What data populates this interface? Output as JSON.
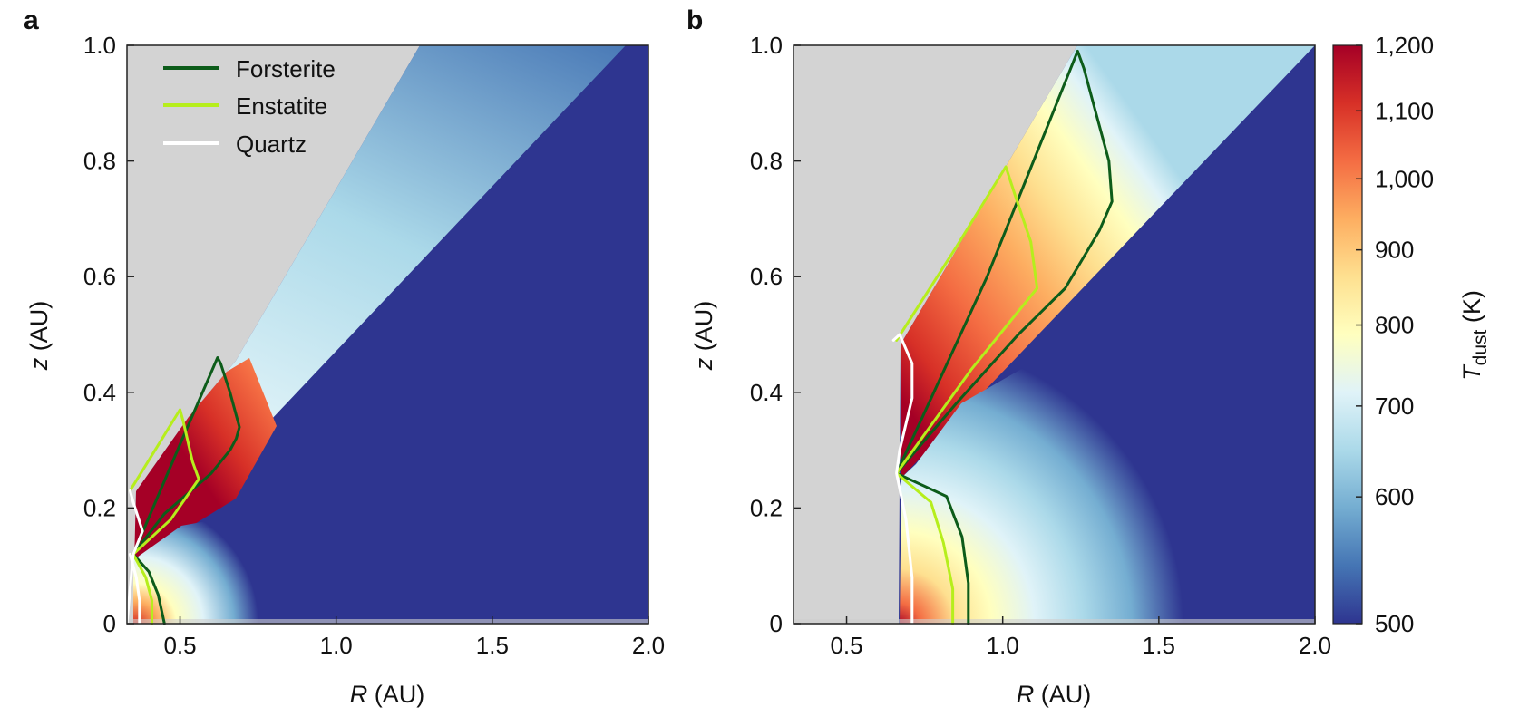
{
  "figure": {
    "panel_letters": [
      "a",
      "b"
    ]
  },
  "colors": {
    "forsterite": "#0d5c1a",
    "enstatite": "#b6ee1c",
    "quartz": "#ffffff",
    "cold_region": "#2e3590",
    "no_data": "#d3d3d3",
    "colormap": [
      "#2e3590",
      "#4575b4",
      "#74add1",
      "#abd9e9",
      "#e0f3f8",
      "#ffffbf",
      "#fee090",
      "#fdae61",
      "#f46d43",
      "#d73027",
      "#a50026"
    ]
  },
  "legend": {
    "items": [
      {
        "label": "Forsterite",
        "color": "#0d5c1a"
      },
      {
        "label": "Enstatite",
        "color": "#b6ee1c"
      },
      {
        "label": "Quartz",
        "color": "#ffffff"
      }
    ],
    "placement": "top-left (panel a)"
  },
  "colorbar": {
    "label_main": "T",
    "label_sub": "dust",
    "label_unit": " (K)",
    "ticks": [
      "1,200",
      "1,100",
      "1,000",
      "900",
      "800",
      "700",
      "600",
      "500"
    ],
    "tick_values": [
      1200,
      1100,
      1000,
      900,
      800,
      700,
      600,
      500
    ],
    "range": [
      500,
      1200
    ]
  },
  "chart_data": [
    {
      "type": "heatmap",
      "panel": "a",
      "xlabel_var": "R",
      "xlabel_unit": " (AU)",
      "ylabel_var": "z",
      "ylabel_unit": " (AU)",
      "xlim": [
        0.33,
        2.0
      ],
      "ylim": [
        0,
        1.0
      ],
      "xticks": [
        0.5,
        1.0,
        1.5,
        2.0
      ],
      "xtick_labels": [
        "0.5",
        "1.0",
        "1.5",
        "2.0"
      ],
      "yticks": [
        0,
        0.2,
        0.4,
        0.6,
        0.8,
        1.0
      ],
      "ytick_labels": [
        "0",
        "0.2",
        "0.4",
        "0.6",
        "0.8",
        "1.0"
      ],
      "grid": false,
      "series": [
        {
          "name": "Forsterite",
          "x": [
            0.35,
            0.4,
            0.43,
            0.45
          ],
          "y": [
            0.12,
            0.09,
            0.05,
            0.0
          ]
        },
        {
          "name": "Forsterite",
          "x": [
            0.35,
            0.5,
            0.62,
            0.63,
            0.66,
            0.69,
            0.68,
            0.67,
            0.66,
            0.6,
            0.45,
            0.35
          ],
          "y": [
            0.12,
            0.31,
            0.46,
            0.45,
            0.4,
            0.34,
            0.32,
            0.31,
            0.3,
            0.26,
            0.19,
            0.12
          ]
        },
        {
          "name": "Enstatite",
          "x": [
            0.35,
            0.39,
            0.41,
            0.41
          ],
          "y": [
            0.12,
            0.08,
            0.04,
            0.0
          ]
        },
        {
          "name": "Enstatite",
          "x": [
            0.34,
            0.42,
            0.5,
            0.51,
            0.54,
            0.56,
            0.47,
            0.35
          ],
          "y": [
            0.23,
            0.3,
            0.37,
            0.35,
            0.28,
            0.25,
            0.18,
            0.12
          ]
        },
        {
          "name": "Quartz",
          "x": [
            0.34,
            0.35,
            0.38,
            0.35,
            0.34,
            0.33
          ],
          "y": [
            0.23,
            0.21,
            0.16,
            0.12,
            0.06,
            0.0
          ]
        },
        {
          "name": "Quartz",
          "x": [
            0.34,
            0.36,
            0.37,
            0.37
          ],
          "y": [
            0.12,
            0.08,
            0.04,
            0.0
          ]
        }
      ]
    },
    {
      "type": "heatmap",
      "panel": "b",
      "xlabel_var": "R",
      "xlabel_unit": " (AU)",
      "ylabel_var": "z",
      "ylabel_unit": " (AU)",
      "xlim": [
        0.33,
        2.0
      ],
      "ylim": [
        0,
        1.0
      ],
      "xticks": [
        0.5,
        1.0,
        1.5,
        2.0
      ],
      "xtick_labels": [
        "0.5",
        "1.0",
        "1.5",
        "2.0"
      ],
      "yticks": [
        0,
        0.2,
        0.4,
        0.6,
        0.8,
        1.0
      ],
      "ytick_labels": [
        "0",
        "0.2",
        "0.4",
        "0.6",
        "0.8",
        "1.0"
      ],
      "grid": false,
      "series": [
        {
          "name": "Forsterite",
          "x": [
            0.66,
            0.82,
            0.87,
            0.89,
            0.89
          ],
          "y": [
            0.26,
            0.22,
            0.15,
            0.07,
            0.0
          ]
        },
        {
          "name": "Forsterite",
          "x": [
            0.66,
            0.95,
            1.24,
            1.26,
            1.3,
            1.34,
            1.35,
            1.31,
            1.2,
            1.05,
            0.85,
            0.66
          ],
          "y": [
            0.26,
            0.6,
            0.99,
            0.96,
            0.88,
            0.8,
            0.73,
            0.68,
            0.58,
            0.5,
            0.38,
            0.26
          ]
        },
        {
          "name": "Enstatite",
          "x": [
            0.66,
            0.77,
            0.81,
            0.84,
            0.84
          ],
          "y": [
            0.26,
            0.21,
            0.14,
            0.06,
            0.0
          ]
        },
        {
          "name": "Enstatite",
          "x": [
            0.66,
            0.85,
            1.01,
            1.04,
            1.09,
            1.11,
            1.05,
            0.9,
            0.66
          ],
          "y": [
            0.49,
            0.65,
            0.79,
            0.74,
            0.66,
            0.58,
            0.54,
            0.44,
            0.26
          ]
        },
        {
          "name": "Quartz",
          "x": [
            0.65,
            0.67,
            0.71,
            0.71,
            0.67,
            0.66
          ],
          "y": [
            0.49,
            0.5,
            0.45,
            0.39,
            0.3,
            0.26
          ]
        },
        {
          "name": "Quartz",
          "x": [
            0.66,
            0.69,
            0.71,
            0.71
          ],
          "y": [
            0.26,
            0.18,
            0.08,
            0.0
          ]
        }
      ]
    }
  ]
}
